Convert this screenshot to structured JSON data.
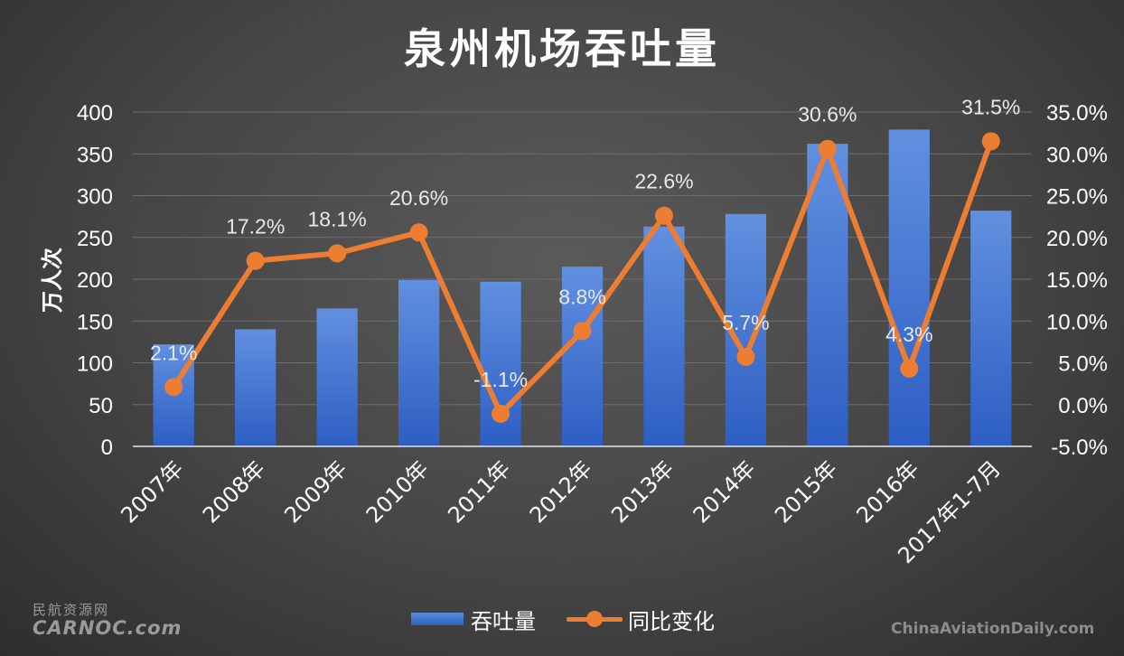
{
  "chart_data": {
    "type": "bar+line",
    "title": "泉州机场吞吐量",
    "ylabel": "万人次",
    "categories": [
      "2007年",
      "2008年",
      "2009年",
      "2010年",
      "2011年",
      "2012年",
      "2013年",
      "2014年",
      "2015年",
      "2016年",
      "2017年1-7月"
    ],
    "series": [
      {
        "name": "吞吐量",
        "type": "bar",
        "axis": "left",
        "values": [
          122,
          140,
          165,
          199,
          197,
          215,
          263,
          278,
          362,
          379,
          282
        ]
      },
      {
        "name": "同比变化",
        "type": "line",
        "axis": "right",
        "values": [
          2.1,
          17.2,
          18.1,
          20.6,
          -1.1,
          8.8,
          22.6,
          5.7,
          30.6,
          4.3,
          31.5
        ],
        "labels": [
          "2.1%",
          "17.2%",
          "18.1%",
          "20.6%",
          "-1.1%",
          "8.8%",
          "22.6%",
          "5.7%",
          "30.6%",
          "4.3%",
          "31.5%"
        ]
      }
    ],
    "ylim": [
      0,
      400
    ],
    "y_ticks": [
      "0",
      "50",
      "100",
      "150",
      "200",
      "250",
      "300",
      "350",
      "400"
    ],
    "y2lim": [
      -5,
      35
    ],
    "y2_ticks": [
      "-5.0%",
      "0.0%",
      "5.0%",
      "10.0%",
      "15.0%",
      "20.0%",
      "25.0%",
      "30.0%",
      "35.0%"
    ],
    "grid": true,
    "legend_position": "bottom",
    "colors": {
      "bar": "#4472c4",
      "line": "#ed7d31"
    }
  },
  "watermarks": {
    "left_cn": "民航资源网",
    "left_en": "CARNOC.com",
    "right": "ChinaAviationDaily.com"
  }
}
